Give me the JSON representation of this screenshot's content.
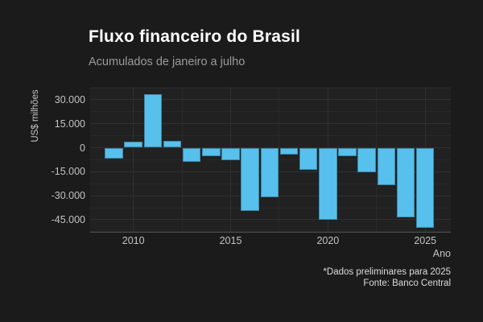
{
  "header": {
    "title": "Fluxo financeiro do Brasil",
    "subtitle": "Acumulados de janeiro a julho"
  },
  "caption": {
    "line1": "*Dados preliminares para 2025",
    "line2": "Fonte: Banco Central"
  },
  "chart_data": {
    "type": "bar",
    "title": "Fluxo financeiro do Brasil",
    "subtitle": "Acumulados de janeiro a julho",
    "xlabel": "Ano",
    "ylabel": "US$ milhões",
    "x": [
      2009,
      2010,
      2011,
      2012,
      2013,
      2014,
      2015,
      2016,
      2017,
      2018,
      2019,
      2020,
      2021,
      2022,
      2023,
      2024,
      2025
    ],
    "values": [
      -7000,
      3800,
      33500,
      4300,
      -8600,
      -5100,
      -7800,
      -39600,
      -30800,
      -4300,
      -14000,
      -44900,
      -5400,
      -15500,
      -23200,
      -43600,
      -50300
    ],
    "ylim": [
      -54500,
      38100
    ],
    "y_major_ticks": [
      30000,
      15000,
      0,
      -15000,
      -30000,
      -45000
    ],
    "y_tick_labels": [
      "30.000",
      "15.000",
      "0",
      "-15.000",
      "-30.000",
      "-45.000"
    ],
    "y_minor_ticks": [
      37500,
      22500,
      7500,
      -7500,
      -22500,
      -37500,
      -52500
    ],
    "x_major_ticks": [
      2010,
      2015,
      2020,
      2025
    ],
    "x_minor_ticks": [
      2012.5,
      2017.5,
      2022.5
    ],
    "grid": true,
    "legend": "none",
    "colors": {
      "bar_fill": "#57c0ec",
      "figure_background": "#1b1b1b",
      "panel_background": "#212121",
      "grid_major": "#303030",
      "grid_minor": "#292929",
      "axis_line": "#4f4f4f",
      "title_text": "#ffffff",
      "subtitle_text": "#9b9b9b",
      "tick_text": "#c3c3c3",
      "caption_text": "#dcdcdc"
    }
  }
}
